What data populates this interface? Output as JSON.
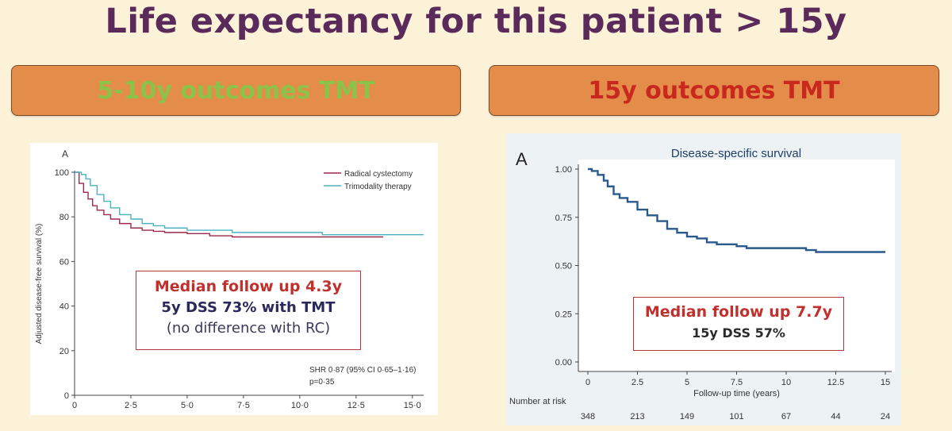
{
  "slide": {
    "title": "Life expectancy for this patient > 15y"
  },
  "banners": {
    "left": {
      "text": "5-10y outcomes TMT",
      "color": "#8bc24a"
    },
    "right": {
      "text": "15y outcomes TMT",
      "color": "#c9281e"
    }
  },
  "callouts": {
    "left": {
      "line1": "Median follow up 4.3y",
      "line2": "5y DSS 73% with TMT",
      "line3": "(no difference with RC)"
    },
    "right": {
      "line1": "Median follow up 7.7y",
      "line2": "15y DSS 57%"
    }
  },
  "chart_data": [
    {
      "type": "line",
      "panel_label": "A",
      "title": "",
      "xlabel": "",
      "ylabel": "Adjusted disease-free survival (%)",
      "xlim": [
        0,
        15.5
      ],
      "ylim": [
        0,
        100
      ],
      "xticks": [
        "0",
        "2·5",
        "5·0",
        "7·5",
        "10·0",
        "12·5",
        "15·0"
      ],
      "xtick_values": [
        0,
        2.5,
        5,
        7.5,
        10,
        12.5,
        15
      ],
      "yticks": [
        "0",
        "20",
        "40",
        "60",
        "80",
        "100"
      ],
      "ytick_values": [
        0,
        20,
        40,
        60,
        80,
        100
      ],
      "legend_position": "top-right",
      "series": [
        {
          "name": "Radical cystectomy",
          "color": "#9b2a4a",
          "x": [
            0,
            0.2,
            0.4,
            0.6,
            0.8,
            1.0,
            1.3,
            1.6,
            2.0,
            2.5,
            3.0,
            3.5,
            4.0,
            5.0,
            6.0,
            7.0,
            8.0,
            10.0,
            12.0,
            13.7
          ],
          "y": [
            100,
            95,
            91,
            88,
            85,
            83,
            81,
            79,
            77,
            75,
            74,
            73.5,
            73,
            72.5,
            71.5,
            71,
            71,
            71,
            71,
            71
          ]
        },
        {
          "name": "Trimodality therapy",
          "color": "#4fb0c0",
          "x": [
            0,
            0.3,
            0.5,
            0.7,
            1.0,
            1.3,
            1.6,
            2.0,
            2.5,
            3.0,
            3.5,
            4.0,
            5.0,
            6.0,
            7.0,
            8.0,
            10.0,
            11.0,
            12.5,
            15.5
          ],
          "y": [
            100,
            99,
            97,
            94,
            90,
            87,
            84,
            81,
            79,
            77,
            76,
            75,
            74,
            74,
            73,
            73,
            73,
            72,
            72,
            72
          ]
        }
      ],
      "annotations": [
        "SHR 0·87 (95% CI 0·65–1·16)",
        "p=0·35"
      ]
    },
    {
      "type": "line",
      "panel_label": "A",
      "title": "Disease-specific survival",
      "xlabel": "Follow-up time (years)",
      "ylabel": "",
      "xlim": [
        0,
        15
      ],
      "ylim": [
        0,
        1
      ],
      "xticks": [
        "0",
        "2.5",
        "5",
        "7.5",
        "10",
        "12.5",
        "15"
      ],
      "xtick_values": [
        0,
        2.5,
        5,
        7.5,
        10,
        12.5,
        15
      ],
      "yticks": [
        "0.00",
        "0.25",
        "0.50",
        "0.75",
        "1.00"
      ],
      "ytick_values": [
        0,
        0.25,
        0.5,
        0.75,
        1.0
      ],
      "series": [
        {
          "color": "#2a5a8c",
          "x": [
            0,
            0.2,
            0.5,
            0.8,
            1.0,
            1.3,
            1.6,
            2.0,
            2.5,
            3.0,
            3.5,
            4.0,
            4.5,
            5.0,
            5.5,
            6.0,
            6.5,
            7.0,
            7.5,
            8.0,
            9.0,
            10.0,
            11.0,
            11.5,
            12.0,
            13.0,
            14.0,
            15.0
          ],
          "y": [
            1.0,
            0.99,
            0.97,
            0.94,
            0.91,
            0.87,
            0.85,
            0.83,
            0.79,
            0.76,
            0.73,
            0.69,
            0.67,
            0.65,
            0.64,
            0.62,
            0.61,
            0.61,
            0.6,
            0.59,
            0.59,
            0.59,
            0.58,
            0.57,
            0.57,
            0.57,
            0.57,
            0.57
          ]
        }
      ],
      "risk_table": {
        "label": "Number at risk",
        "values": [
          "348",
          "213",
          "149",
          "101",
          "67",
          "44",
          "24"
        ]
      }
    }
  ]
}
